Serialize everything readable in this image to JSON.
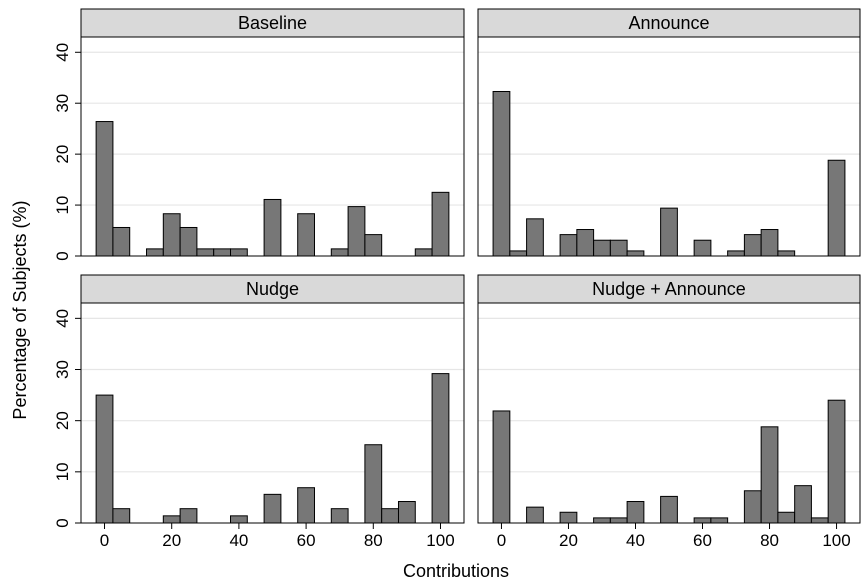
{
  "chart_data": {
    "type": "bar",
    "xlabel": "Contributions",
    "ylabel": "Percentage of Subjects (%)",
    "xlim": [
      -7,
      107
    ],
    "ylim": [
      0,
      43
    ],
    "xticks": [
      0,
      20,
      40,
      60,
      80,
      100
    ],
    "yticks": [
      0,
      10,
      20,
      30,
      40
    ],
    "bin_width": 5,
    "colors": {
      "bar_fill": "#777777",
      "bar_stroke": "#000000",
      "panel_header": "#d9d9d9",
      "grid": "#e6e6e6"
    },
    "panels": [
      {
        "title": "Baseline",
        "bins": [
          0,
          5,
          15,
          20,
          25,
          30,
          35,
          40,
          50,
          60,
          70,
          75,
          80,
          95,
          100
        ],
        "values": [
          26.4,
          5.6,
          1.4,
          8.3,
          5.6,
          1.4,
          1.4,
          1.4,
          11.1,
          8.3,
          1.4,
          9.7,
          4.2,
          1.4,
          12.5
        ]
      },
      {
        "title": "Announce",
        "bins": [
          0,
          5,
          10,
          20,
          25,
          30,
          35,
          40,
          50,
          60,
          70,
          75,
          80,
          85,
          100
        ],
        "values": [
          32.3,
          1.0,
          7.3,
          4.2,
          5.2,
          3.1,
          3.1,
          1.0,
          9.4,
          3.1,
          1.0,
          4.2,
          5.2,
          1.0,
          18.8
        ]
      },
      {
        "title": "Nudge",
        "bins": [
          0,
          5,
          20,
          25,
          40,
          50,
          60,
          70,
          80,
          85,
          90,
          100
        ],
        "values": [
          25.0,
          2.8,
          1.4,
          2.8,
          1.4,
          5.6,
          6.9,
          2.8,
          15.3,
          2.8,
          4.2,
          29.2
        ]
      },
      {
        "title": "Nudge + Announce",
        "bins": [
          0,
          10,
          20,
          30,
          35,
          40,
          50,
          60,
          65,
          75,
          80,
          85,
          90,
          95,
          100
        ],
        "values": [
          21.9,
          3.1,
          2.1,
          1.0,
          1.0,
          4.2,
          5.2,
          1.0,
          1.0,
          6.3,
          18.8,
          2.1,
          7.3,
          1.0,
          24.0
        ]
      }
    ]
  }
}
